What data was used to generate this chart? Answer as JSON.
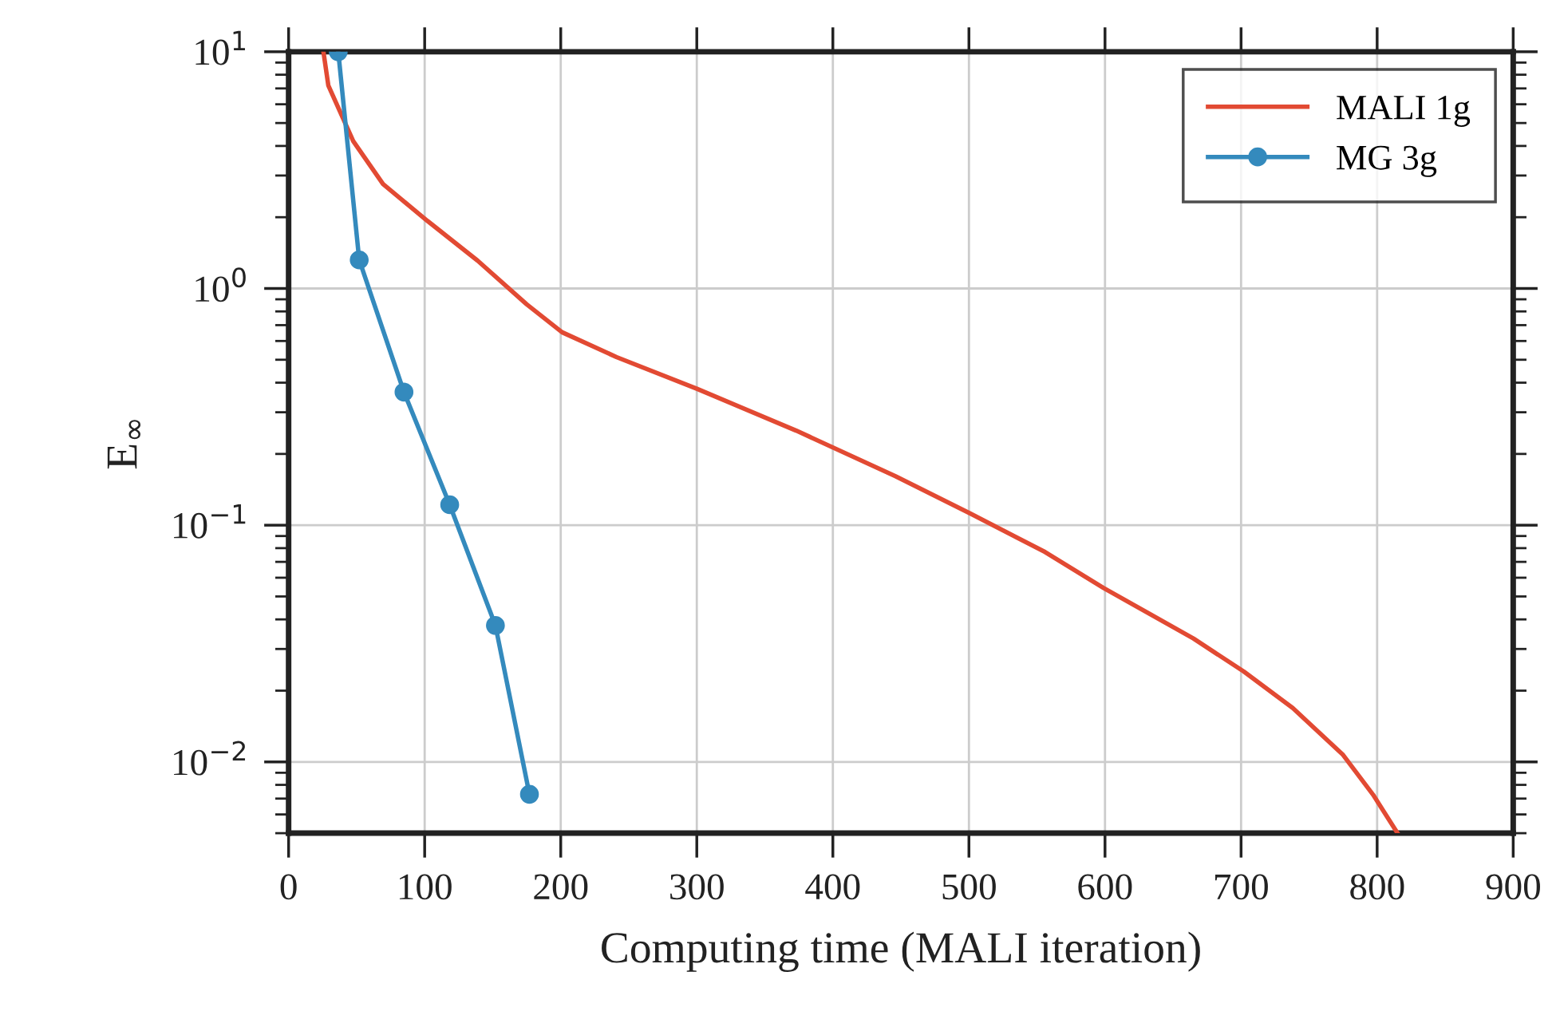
{
  "chart_data": {
    "type": "line",
    "xlabel": "Computing time (MALI iteration)",
    "ylabel": "E$_{∞}$",
    "log": "y",
    "grid": true,
    "legend": "top right",
    "xlim": [
      0,
      900
    ],
    "xticks": [
      0,
      100,
      200,
      300,
      400,
      500,
      600,
      700,
      800,
      900
    ],
    "ylim": [
      0.005,
      10
    ],
    "yticks": [
      {
        "value": 0.01,
        "label": "10$^{−2}$"
      },
      {
        "value": 0.1,
        "label": "10$^{−1}$"
      },
      {
        "value": 1,
        "label": "10$^{0}$"
      },
      {
        "value": 10,
        "label": "10$^{1}$"
      }
    ],
    "series": [
      {
        "name": "MALI 1g",
        "color": "#e24a33",
        "marker": "none",
        "x": [
          25.6,
          29.2,
          47.5,
          69.4,
          102,
          139,
          175,
          201,
          241,
          300,
          373,
          446,
          501,
          556,
          599,
          665,
          702,
          738,
          775,
          797,
          815
        ],
        "values": [
          10,
          7.2,
          4.19,
          2.76,
          1.93,
          1.31,
          0.857,
          0.653,
          0.513,
          0.377,
          0.251,
          0.161,
          0.112,
          0.077,
          0.0543,
          0.0332,
          0.0241,
          0.0169,
          0.0107,
          0.00727,
          0.005
        ]
      },
      {
        "name": "MG 3g",
        "color": "#348abd",
        "marker": "circle",
        "x": [
          36.5,
          51.9,
          84.8,
          118.4,
          152,
          177
        ],
        "values": [
          10,
          1.32,
          0.365,
          0.122,
          0.0377,
          0.0073
        ]
      }
    ]
  }
}
